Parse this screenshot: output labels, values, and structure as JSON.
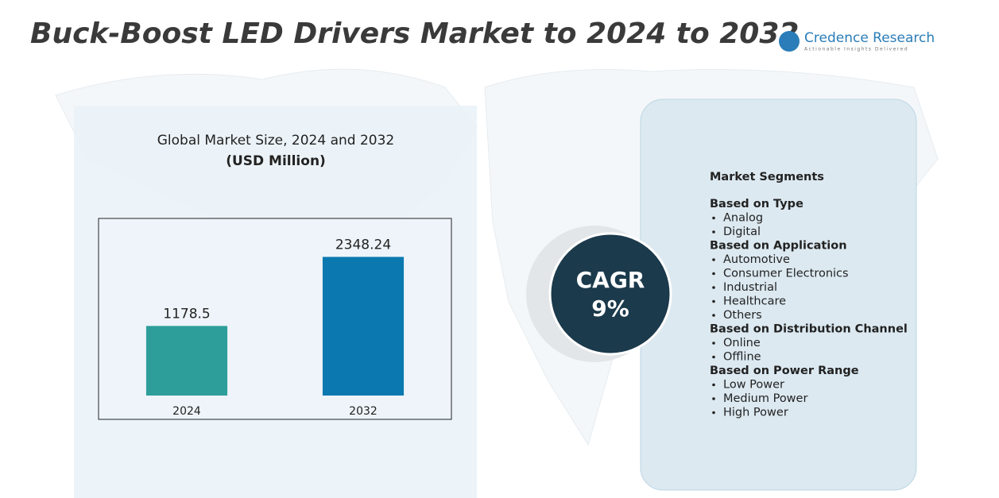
{
  "header": {
    "title": "Buck-Boost LED Drivers Market to 2024 to 2032",
    "logo_name": "Credence Research",
    "logo_tagline": "Actionable Insights Delivered"
  },
  "chart_data": {
    "type": "bar",
    "title": "Global Market Size, 2024 and 2032",
    "subtitle": "(USD Million)",
    "categories": [
      "2024",
      "2032"
    ],
    "values": [
      1178.5,
      2348.24
    ],
    "colors": [
      "#2e9e9a",
      "#0b78b0"
    ],
    "ylim": [
      0,
      3000
    ]
  },
  "cagr": {
    "label": "CAGR",
    "value": "9%"
  },
  "segments": {
    "title": "Market Segments",
    "groups": [
      {
        "heading": "Based on Type",
        "items": [
          "Analog",
          "Digital"
        ]
      },
      {
        "heading": "Based on Application",
        "items": [
          "Automotive",
          "Consumer Electronics",
          "Industrial",
          "Healthcare",
          "Others"
        ]
      },
      {
        "heading": "Based on Distribution Channel",
        "items": [
          "Online",
          "Offline"
        ]
      },
      {
        "heading": "Based on Power Range",
        "items": [
          "Low Power",
          "Medium Power",
          "High Power"
        ]
      }
    ]
  }
}
